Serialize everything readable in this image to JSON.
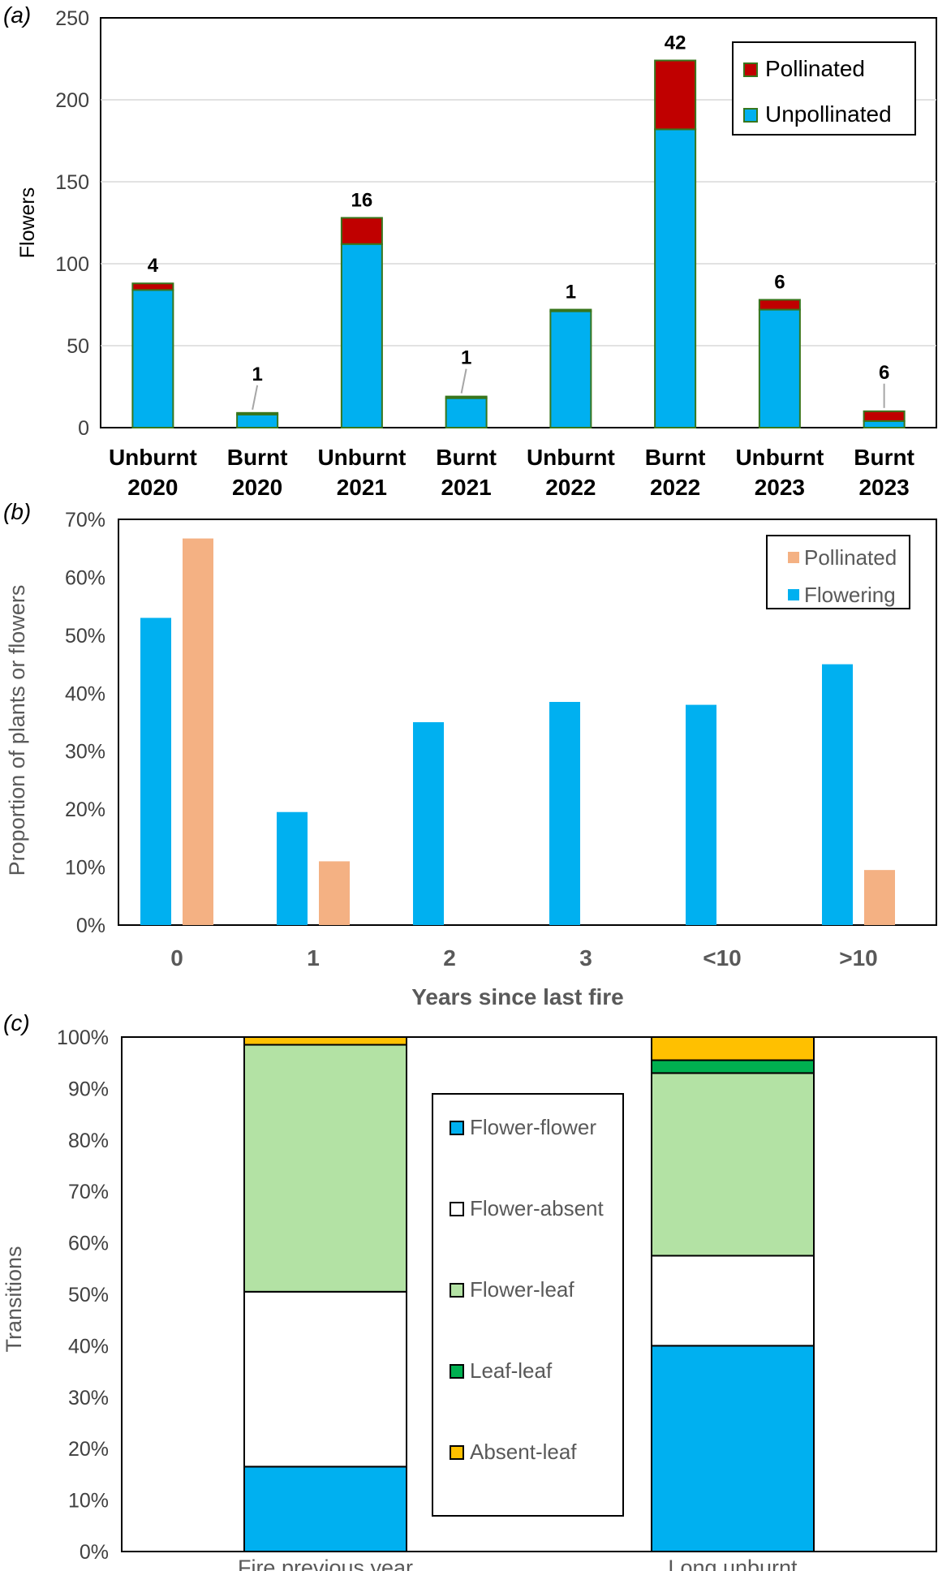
{
  "chart_data": [
    {
      "type": "bar",
      "panel_label": "(a)",
      "ylabel": "Flowers",
      "ylim": [
        0,
        250
      ],
      "yticks": [
        "0",
        "50",
        "100",
        "150",
        "200",
        "250"
      ],
      "categories": [
        [
          "Unburnt",
          "2020"
        ],
        [
          "Burnt",
          "2020"
        ],
        [
          "Unburnt",
          "2021"
        ],
        [
          "Burnt",
          "2021"
        ],
        [
          "Unburnt",
          "2022"
        ],
        [
          "Burnt",
          "2022"
        ],
        [
          "Unburnt",
          "2023"
        ],
        [
          "Burnt",
          "2023"
        ]
      ],
      "stacked": true,
      "grid": true,
      "legend_position": "top-right",
      "series": [
        {
          "name": "Unpollinated",
          "values": [
            84,
            8,
            112,
            18,
            71,
            182,
            72,
            4
          ],
          "color": "#00b0f0"
        },
        {
          "name": "Pollinated",
          "values": [
            4,
            1,
            16,
            1,
            1,
            42,
            6,
            6
          ],
          "color": "#c00000"
        }
      ],
      "legend_order": [
        "Pollinated",
        "Unpollinated"
      ],
      "data_labels": [
        "4",
        "1",
        "16",
        "1",
        "1",
        "42",
        "6",
        "6"
      ],
      "bar_edge_color": "#38761d"
    },
    {
      "type": "bar",
      "panel_label": "(b)",
      "ylabel": "Proportion of plants or flowers",
      "xlabel": "Years since last fire",
      "ylim": [
        0,
        0.7
      ],
      "yticks": [
        "0%",
        "10%",
        "20%",
        "30%",
        "40%",
        "50%",
        "60%",
        "70%"
      ],
      "categories": [
        "0",
        "1",
        "2",
        "3",
        "<10",
        ">10"
      ],
      "grid": false,
      "legend_position": "top-right",
      "series": [
        {
          "name": "Flowering",
          "values": [
            0.53,
            0.195,
            0.35,
            0.385,
            0.38,
            0.45
          ],
          "color": "#00b0f0"
        },
        {
          "name": "Pollinated",
          "values": [
            0.667,
            0.11,
            0,
            0,
            0,
            0.095
          ],
          "color": "#f4b183"
        }
      ],
      "legend_order": [
        "Pollinated",
        "Flowering"
      ]
    },
    {
      "type": "bar",
      "panel_label": "(c)",
      "ylabel": "Transitions",
      "ylim": [
        0,
        1
      ],
      "yticks": [
        "0%",
        "10%",
        "20%",
        "30%",
        "40%",
        "50%",
        "60%",
        "70%",
        "80%",
        "90%",
        "100%"
      ],
      "categories": [
        "Fire previous year",
        "Long unburnt"
      ],
      "stacked": true,
      "grid": false,
      "legend_position": "center",
      "series": [
        {
          "name": "Flower-flower",
          "values": [
            0.165,
            0.4
          ],
          "color": "#00b0f0"
        },
        {
          "name": "Flower-absent",
          "values": [
            0.34,
            0.175
          ],
          "color": "#ffffff"
        },
        {
          "name": "Flower-leaf",
          "values": [
            0.48,
            0.355
          ],
          "color": "#b3e2a4"
        },
        {
          "name": "Leaf-leaf",
          "values": [
            0,
            0.025
          ],
          "color": "#00b050"
        },
        {
          "name": "Absent-leaf",
          "values": [
            0.015,
            0.045
          ],
          "color": "#ffc000"
        }
      ]
    }
  ]
}
